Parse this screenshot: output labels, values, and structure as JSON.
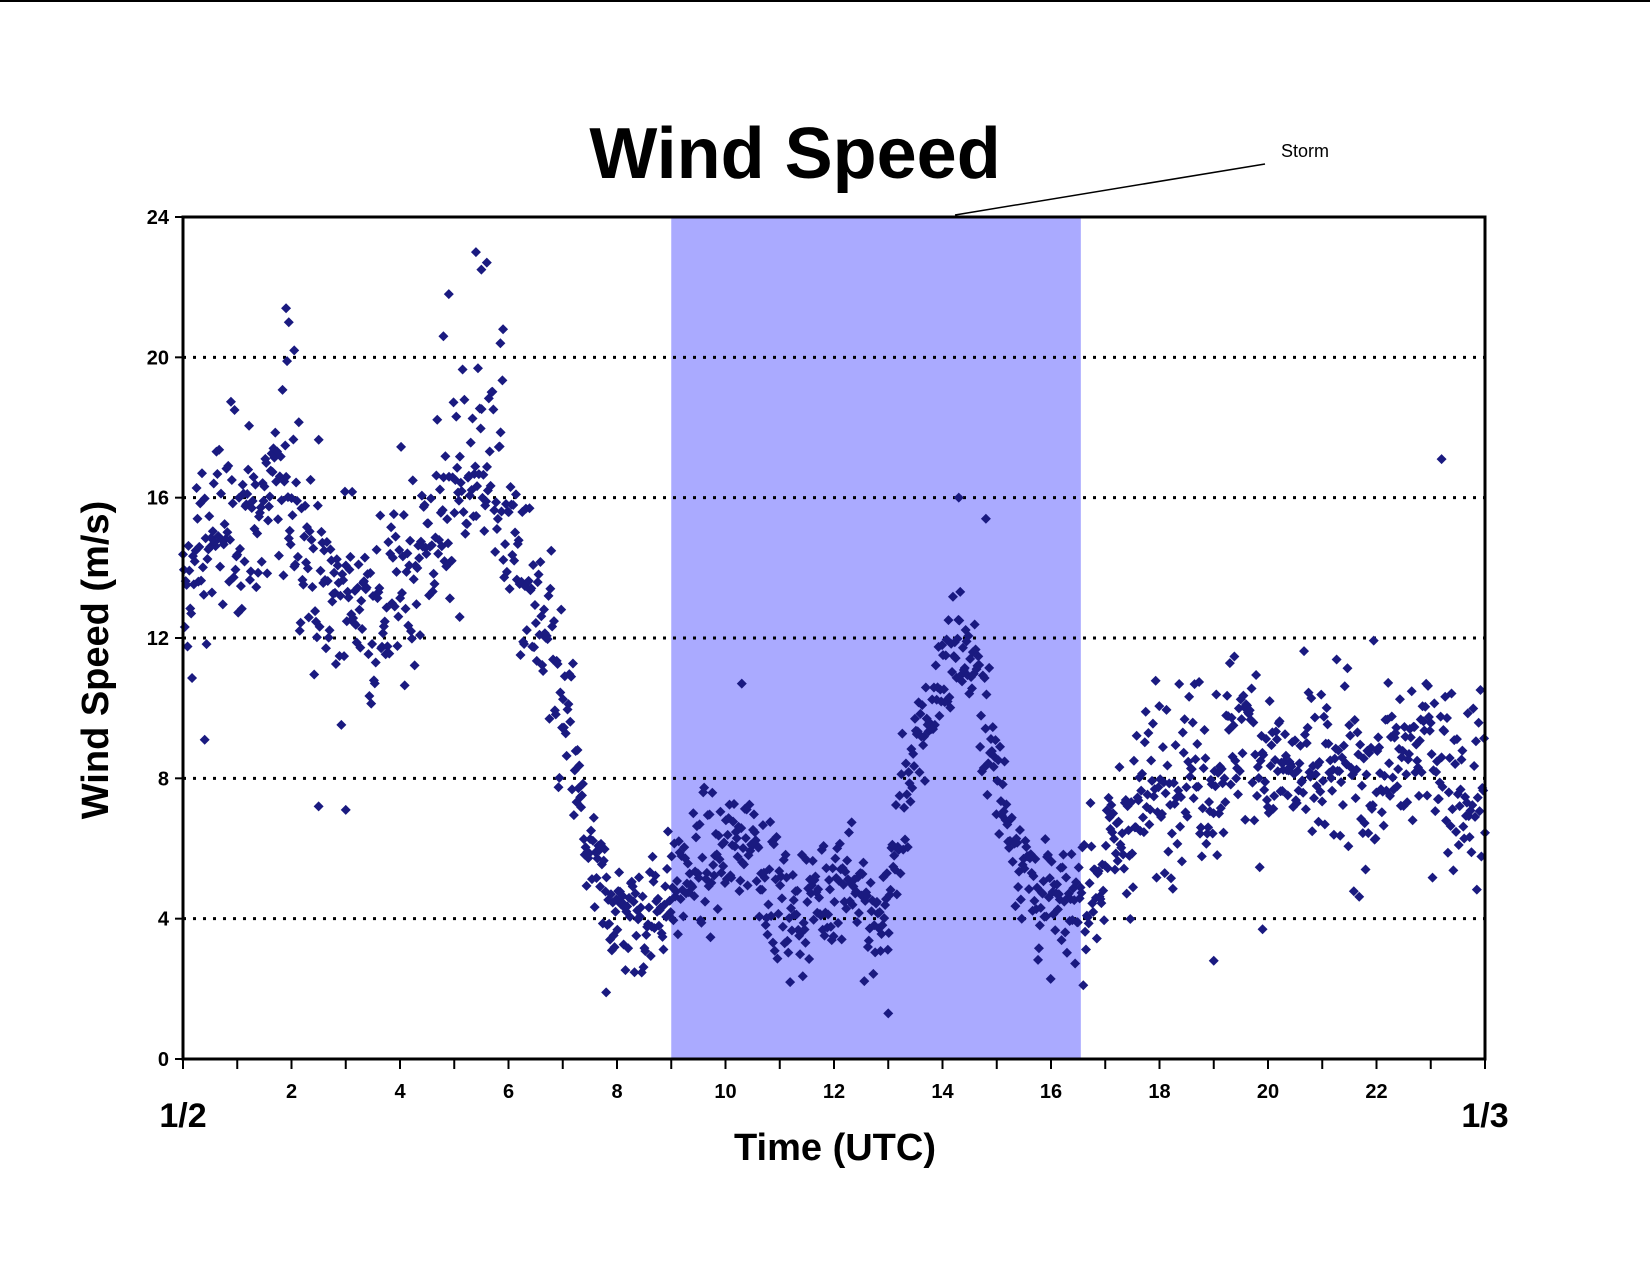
{
  "chart_data": {
    "type": "scatter",
    "title": "Wind Speed",
    "xlabel": "Time (UTC)",
    "ylabel": "Wind Speed (m/s)",
    "xlim": [
      0,
      24
    ],
    "ylim": [
      0,
      24
    ],
    "x_ticks": [
      2,
      4,
      6,
      8,
      10,
      12,
      14,
      16,
      18,
      20,
      22
    ],
    "y_ticks": [
      0,
      4,
      8,
      12,
      16,
      20,
      24
    ],
    "date_labels": [
      {
        "x": 0,
        "label": "1/2"
      },
      {
        "x": 24,
        "label": "1/3"
      }
    ],
    "grid": "horizontal dotted at 4, 8, 12, 16, 20",
    "marker_color": "#1a1a80",
    "shaded_region": {
      "x_start": 9.0,
      "x_end": 16.55,
      "color": "#aaaaff",
      "label": "Storm"
    },
    "series_anchors": [
      [
        0.0,
        12.5
      ],
      [
        0.3,
        14.5
      ],
      [
        0.7,
        15.0
      ],
      [
        1.0,
        15.5
      ],
      [
        1.5,
        15.5
      ],
      [
        2.0,
        16.5
      ],
      [
        2.4,
        14.0
      ],
      [
        2.8,
        13.0
      ],
      [
        3.2,
        13.5
      ],
      [
        3.6,
        12.5
      ],
      [
        4.0,
        13.5
      ],
      [
        4.4,
        14.5
      ],
      [
        4.8,
        15.5
      ],
      [
        5.2,
        16.5
      ],
      [
        5.6,
        17.5
      ],
      [
        6.0,
        15.0
      ],
      [
        6.4,
        13.0
      ],
      [
        6.8,
        11.0
      ],
      [
        7.2,
        8.5
      ],
      [
        7.5,
        5.5
      ],
      [
        8.0,
        4.2
      ],
      [
        8.5,
        4.0
      ],
      [
        9.0,
        4.8
      ],
      [
        9.5,
        5.5
      ],
      [
        10.0,
        5.8
      ],
      [
        10.5,
        6.5
      ],
      [
        10.8,
        5.0
      ],
      [
        11.2,
        4.0
      ],
      [
        11.6,
        4.5
      ],
      [
        12.0,
        5.0
      ],
      [
        12.3,
        5.5
      ],
      [
        12.7,
        3.5
      ],
      [
        13.0,
        4.5
      ],
      [
        13.3,
        7.5
      ],
      [
        13.7,
        9.5
      ],
      [
        14.0,
        11.0
      ],
      [
        14.3,
        12.0
      ],
      [
        14.7,
        10.5
      ],
      [
        15.0,
        8.0
      ],
      [
        15.4,
        6.0
      ],
      [
        15.8,
        4.5
      ],
      [
        16.2,
        4.2
      ],
      [
        16.6,
        4.8
      ],
      [
        17.0,
        5.5
      ],
      [
        17.5,
        7.0
      ],
      [
        18.0,
        8.0
      ],
      [
        18.5,
        8.5
      ],
      [
        19.0,
        8.0
      ],
      [
        19.5,
        9.5
      ],
      [
        20.0,
        8.5
      ],
      [
        20.5,
        8.0
      ],
      [
        21.0,
        8.2
      ],
      [
        21.5,
        8.0
      ],
      [
        22.0,
        8.0
      ],
      [
        22.5,
        8.5
      ],
      [
        23.0,
        9.0
      ],
      [
        23.5,
        8.0
      ],
      [
        24.0,
        7.5
      ]
    ],
    "outliers": [
      [
        1.9,
        21.4
      ],
      [
        1.95,
        21.0
      ],
      [
        2.05,
        20.2
      ],
      [
        4.8,
        20.6
      ],
      [
        4.9,
        21.8
      ],
      [
        5.4,
        23.0
      ],
      [
        5.5,
        22.5
      ],
      [
        5.6,
        22.7
      ],
      [
        5.9,
        20.8
      ],
      [
        5.85,
        20.4
      ],
      [
        23.2,
        17.1
      ],
      [
        19.0,
        2.8
      ],
      [
        13.0,
        1.3
      ],
      [
        7.8,
        1.9
      ],
      [
        14.3,
        16.0
      ],
      [
        14.8,
        15.4
      ],
      [
        2.5,
        7.2
      ],
      [
        3.0,
        7.1
      ],
      [
        0.4,
        9.1
      ],
      [
        5.1,
        12.6
      ],
      [
        19.9,
        3.7
      ],
      [
        10.3,
        10.7
      ]
    ],
    "n_points": 1440,
    "spread": 1.6
  }
}
